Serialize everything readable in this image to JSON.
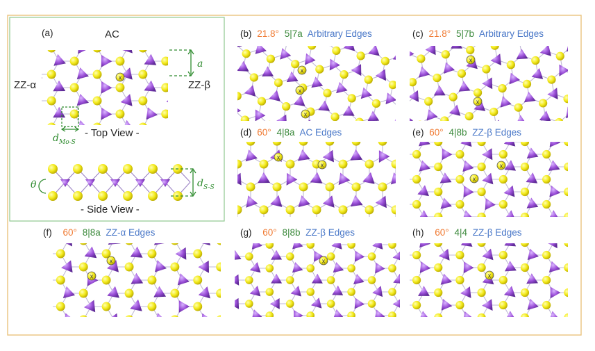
{
  "colors": {
    "mo": "#9b4fd8",
    "s": "#f3ea1a",
    "angle": "#f07a32",
    "defect": "#3d8a3d",
    "edge": "#4a78c8",
    "dim": "#2e8b2e",
    "frame_a": "#8fc88f",
    "frame_outer": "#eac37d"
  },
  "panel_a": {
    "label": "(a)",
    "top_label": "AC",
    "left_label": "ZZ-α",
    "right_label": "ZZ-β",
    "lattice_symbol": "a",
    "bond_symbol": "d",
    "bond_subscript": "Mo-S",
    "top_view": "- Top View -",
    "angle_symbol": "θ",
    "height_symbol": "d",
    "height_subscript": "S-S",
    "side_view": "- Side View -"
  },
  "panels": [
    {
      "id": "b",
      "label": "(b)",
      "angle": "21.8°",
      "defect": "5|7a",
      "edge": "Arbitrary Edges"
    },
    {
      "id": "c",
      "label": "(c)",
      "angle": "21.8°",
      "defect": "5|7b",
      "edge": "Arbitrary Edges"
    },
    {
      "id": "d",
      "label": "(d)",
      "angle": "60°",
      "defect": "4|8a",
      "edge": "AC Edges"
    },
    {
      "id": "e",
      "label": "(e)",
      "angle": "60°",
      "defect": "4|8b",
      "edge": "ZZ-β Edges"
    },
    {
      "id": "f",
      "label": "(f)",
      "angle": "60°",
      "defect": "8|8a",
      "edge": "ZZ-α Edges"
    },
    {
      "id": "g",
      "label": "(g)",
      "angle": "60°",
      "defect": "8|8b",
      "edge": "ZZ-β Edges"
    },
    {
      "id": "h",
      "label": "(h)",
      "angle": "60°",
      "defect": "4|4",
      "edge": "ZZ-β Edges"
    }
  ],
  "marker_symbol": "x"
}
